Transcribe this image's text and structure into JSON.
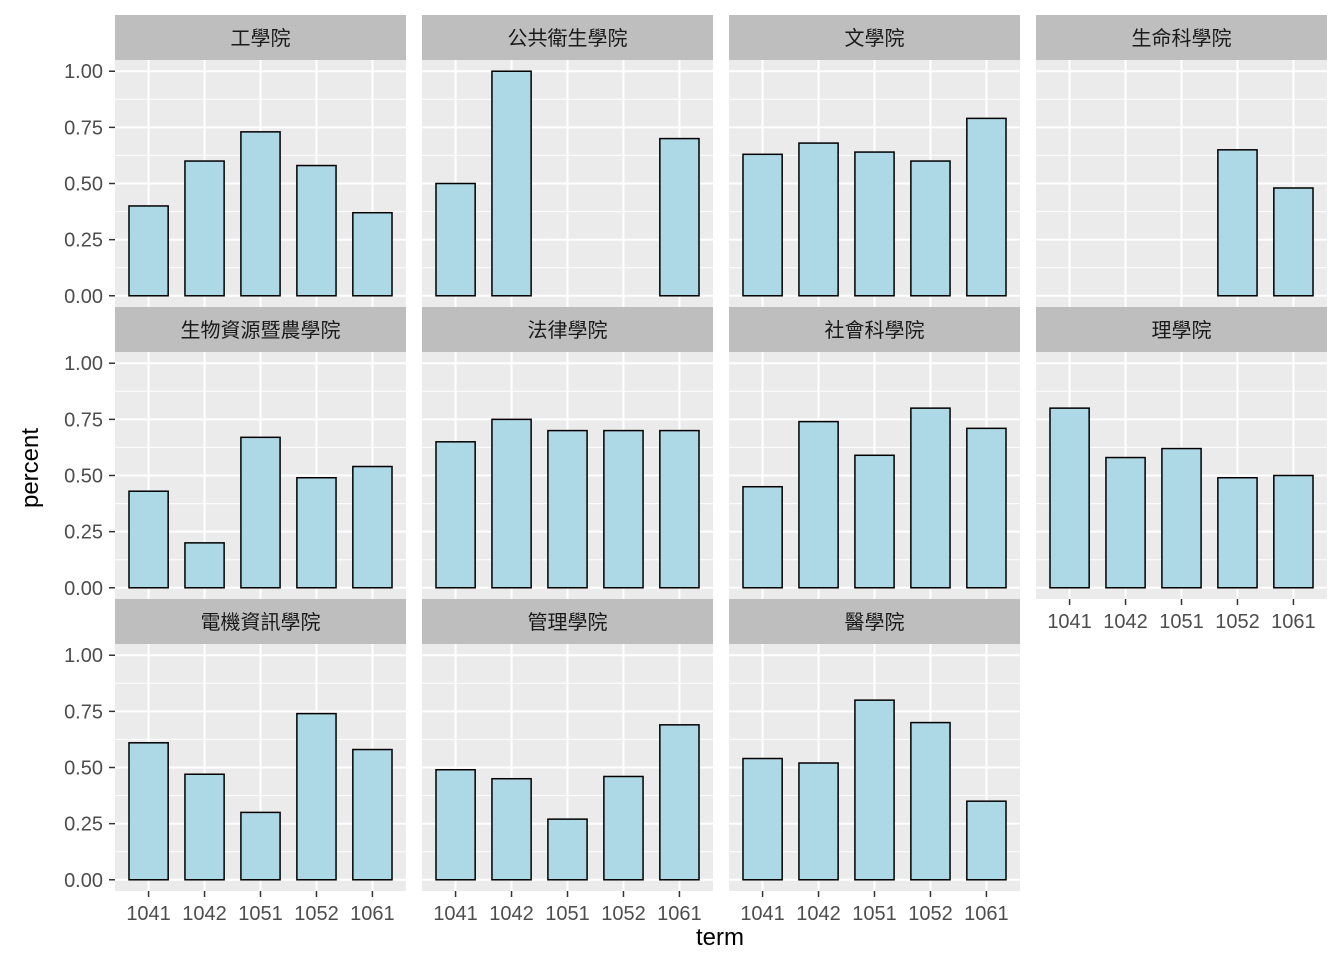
{
  "chart_data": {
    "type": "bar",
    "layout": "facet_wrap",
    "xlabel": "term",
    "ylabel": "percent",
    "categories": [
      "1041",
      "1042",
      "1051",
      "1052",
      "1061"
    ],
    "ylim": [
      0,
      1.0
    ],
    "y_ticks": [
      "0.00",
      "0.25",
      "0.50",
      "0.75",
      "1.00"
    ],
    "y_tick_values": [
      0,
      0.25,
      0.5,
      0.75,
      1.0
    ],
    "grid": true,
    "legend": "none",
    "colors": {
      "bar_fill": "#add8e6",
      "bar_stroke": "#000000",
      "panel_bg": "#ebebeb",
      "strip_bg": "#bebebe",
      "grid": "#ffffff"
    },
    "facets": [
      {
        "name": "工學院",
        "values": [
          0.4,
          0.6,
          0.73,
          0.58,
          0.37
        ]
      },
      {
        "name": "公共衛生學院",
        "values": [
          0.5,
          1.0,
          null,
          null,
          0.7
        ]
      },
      {
        "name": "文學院",
        "values": [
          0.63,
          0.68,
          0.64,
          0.6,
          0.79
        ]
      },
      {
        "name": "生命科學院",
        "values": [
          null,
          null,
          null,
          0.65,
          0.48
        ]
      },
      {
        "name": "生物資源暨農學院",
        "values": [
          0.43,
          0.2,
          0.67,
          0.49,
          0.54
        ]
      },
      {
        "name": "法律學院",
        "values": [
          0.65,
          0.75,
          0.7,
          0.7,
          0.7
        ]
      },
      {
        "name": "社會科學院",
        "values": [
          0.45,
          0.74,
          0.59,
          0.8,
          0.71
        ]
      },
      {
        "name": "理學院",
        "values": [
          0.8,
          0.58,
          0.62,
          0.49,
          0.5
        ]
      },
      {
        "name": "電機資訊學院",
        "values": [
          0.61,
          0.47,
          0.3,
          0.74,
          0.58
        ]
      },
      {
        "name": "管理學院",
        "values": [
          0.49,
          0.45,
          0.27,
          0.46,
          0.69
        ]
      },
      {
        "name": "醫學院",
        "values": [
          0.54,
          0.52,
          0.8,
          0.7,
          0.35
        ]
      }
    ]
  }
}
